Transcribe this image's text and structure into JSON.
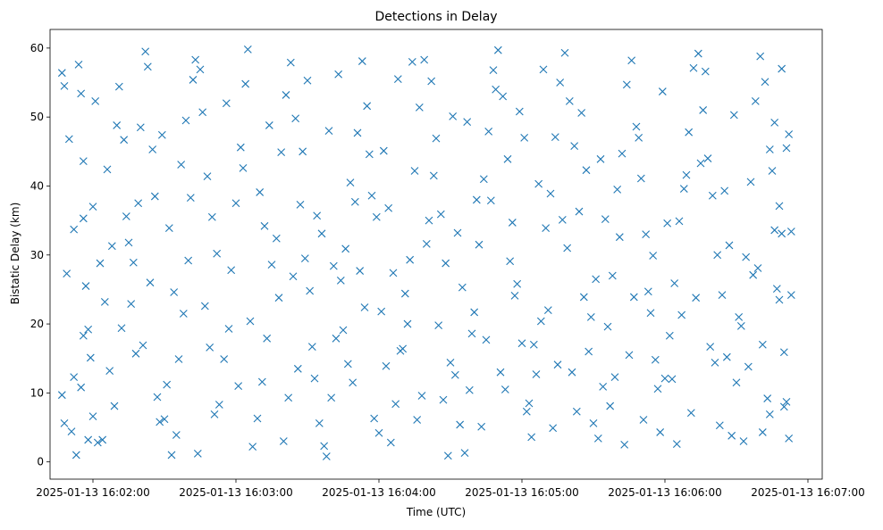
{
  "chart_data": {
    "type": "scatter",
    "title": "Detections in Delay",
    "xlabel": "Time (UTC)",
    "ylabel": "Bistatic Delay (km)",
    "x_type": "time",
    "x_ticks": [
      "2025-01-13 16:02:00",
      "2025-01-13 16:03:00",
      "2025-01-13 16:04:00",
      "2025-01-13 16:05:00",
      "2025-01-13 16:06:00",
      "2025-01-13 16:07:00"
    ],
    "y_ticks": [
      0,
      10,
      20,
      30,
      40,
      50,
      60
    ],
    "xlim": [
      "2025-01-13 16:01:42",
      "2025-01-13 16:07:06"
    ],
    "ylim": [
      -2.5,
      62.7
    ],
    "grid": false,
    "legend": "none",
    "marker": "x",
    "color": "#1f77b4",
    "points": [
      [
        "16:01:47",
        56.4
      ],
      [
        "16:01:48",
        54.5
      ],
      [
        "16:01:50",
        46.8
      ],
      [
        "16:01:49",
        27.3
      ],
      [
        "16:01:47",
        9.7
      ],
      [
        "16:01:48",
        5.6
      ],
      [
        "16:01:52",
        12.3
      ],
      [
        "16:01:53",
        1.0
      ],
      [
        "16:01:55",
        10.8
      ],
      [
        "16:01:52",
        33.7
      ],
      [
        "16:01:54",
        57.6
      ],
      [
        "16:01:55",
        53.4
      ],
      [
        "16:01:56",
        43.6
      ],
      [
        "16:01:56",
        35.3
      ],
      [
        "16:01:57",
        25.5
      ],
      [
        "16:01:58",
        19.2
      ],
      [
        "16:01:56",
        18.3
      ],
      [
        "16:01:58",
        3.2
      ],
      [
        "16:02:00",
        6.6
      ],
      [
        "16:02:02",
        2.8
      ],
      [
        "16:02:00",
        37.0
      ],
      [
        "16:02:01",
        52.3
      ],
      [
        "16:02:03",
        28.8
      ],
      [
        "16:02:05",
        23.2
      ],
      [
        "16:02:07",
        13.2
      ],
      [
        "16:02:08",
        31.3
      ],
      [
        "16:02:10",
        48.8
      ],
      [
        "16:02:11",
        54.4
      ],
      [
        "16:02:13",
        46.7
      ],
      [
        "16:02:15",
        31.8
      ],
      [
        "16:02:18",
        15.7
      ],
      [
        "16:02:16",
        22.9
      ],
      [
        "16:02:20",
        48.5
      ],
      [
        "16:02:22",
        59.5
      ],
      [
        "16:02:23",
        57.3
      ],
      [
        "16:02:25",
        45.3
      ],
      [
        "16:02:26",
        38.5
      ],
      [
        "16:02:24",
        26.0
      ],
      [
        "16:02:21",
        16.9
      ],
      [
        "16:02:27",
        9.4
      ],
      [
        "16:02:28",
        5.8
      ],
      [
        "16:02:30",
        6.2
      ],
      [
        "16:02:33",
        1.0
      ],
      [
        "16:02:35",
        3.9
      ],
      [
        "16:02:36",
        14.9
      ],
      [
        "16:02:38",
        21.5
      ],
      [
        "16:02:40",
        29.2
      ],
      [
        "16:02:41",
        38.3
      ],
      [
        "16:02:39",
        49.5
      ],
      [
        "16:02:43",
        58.3
      ],
      [
        "16:02:45",
        56.9
      ],
      [
        "16:02:46",
        50.7
      ],
      [
        "16:02:48",
        41.4
      ],
      [
        "16:02:50",
        35.5
      ],
      [
        "16:02:47",
        22.6
      ],
      [
        "16:02:49",
        16.6
      ],
      [
        "16:02:53",
        8.3
      ],
      [
        "16:02:55",
        14.9
      ],
      [
        "16:02:58",
        27.8
      ],
      [
        "16:03:00",
        37.5
      ],
      [
        "16:03:02",
        45.6
      ],
      [
        "16:03:04",
        54.8
      ],
      [
        "16:03:05",
        59.8
      ],
      [
        "16:03:07",
        2.2
      ],
      [
        "16:03:09",
        6.3
      ],
      [
        "16:03:11",
        11.6
      ],
      [
        "16:03:13",
        17.9
      ],
      [
        "16:03:15",
        28.6
      ],
      [
        "16:03:17",
        32.4
      ],
      [
        "16:03:19",
        44.9
      ],
      [
        "16:03:21",
        53.2
      ],
      [
        "16:03:23",
        57.9
      ],
      [
        "16:03:25",
        49.8
      ],
      [
        "16:03:27",
        37.3
      ],
      [
        "16:03:29",
        29.5
      ],
      [
        "16:03:31",
        24.8
      ],
      [
        "16:03:33",
        12.1
      ],
      [
        "16:03:35",
        5.6
      ],
      [
        "16:03:38",
        0.8
      ],
      [
        "16:03:40",
        9.3
      ],
      [
        "16:03:42",
        17.9
      ],
      [
        "16:03:44",
        26.3
      ],
      [
        "16:03:46",
        30.9
      ],
      [
        "16:03:48",
        40.5
      ],
      [
        "16:03:51",
        47.7
      ],
      [
        "16:03:53",
        58.1
      ],
      [
        "16:03:55",
        51.6
      ],
      [
        "16:03:57",
        38.6
      ],
      [
        "16:03:59",
        35.5
      ],
      [
        "16:04:01",
        21.8
      ],
      [
        "16:04:03",
        13.9
      ],
      [
        "16:04:05",
        2.8
      ],
      [
        "16:04:07",
        8.4
      ],
      [
        "16:04:09",
        16.1
      ],
      [
        "16:04:11",
        24.4
      ],
      [
        "16:04:13",
        29.3
      ],
      [
        "16:04:15",
        42.2
      ],
      [
        "16:04:17",
        51.4
      ],
      [
        "16:04:19",
        58.3
      ],
      [
        "16:04:22",
        55.2
      ],
      [
        "16:04:24",
        46.9
      ],
      [
        "16:04:26",
        35.9
      ],
      [
        "16:04:28",
        28.8
      ],
      [
        "16:04:30",
        14.4
      ],
      [
        "16:04:32",
        12.6
      ],
      [
        "16:04:34",
        5.4
      ],
      [
        "16:04:36",
        1.3
      ],
      [
        "16:04:38",
        10.4
      ],
      [
        "16:04:40",
        21.7
      ],
      [
        "16:04:42",
        31.5
      ],
      [
        "16:04:44",
        41.0
      ],
      [
        "16:04:46",
        47.9
      ],
      [
        "16:04:48",
        56.8
      ],
      [
        "16:04:50",
        59.7
      ],
      [
        "16:04:52",
        53.0
      ],
      [
        "16:04:54",
        43.9
      ],
      [
        "16:04:56",
        34.7
      ],
      [
        "16:04:58",
        25.8
      ],
      [
        "16:05:00",
        17.2
      ],
      [
        "16:05:02",
        7.3
      ],
      [
        "16:05:04",
        3.6
      ],
      [
        "16:05:06",
        12.7
      ],
      [
        "16:05:08",
        20.4
      ],
      [
        "16:05:10",
        33.9
      ],
      [
        "16:05:12",
        38.9
      ],
      [
        "16:05:14",
        47.1
      ],
      [
        "16:05:16",
        55.0
      ],
      [
        "16:05:18",
        59.3
      ],
      [
        "16:05:20",
        52.3
      ],
      [
        "16:05:22",
        45.8
      ],
      [
        "16:05:24",
        36.3
      ],
      [
        "16:05:26",
        23.9
      ],
      [
        "16:05:28",
        16.0
      ],
      [
        "16:05:30",
        5.6
      ],
      [
        "16:05:32",
        3.4
      ],
      [
        "16:05:34",
        10.9
      ],
      [
        "16:05:36",
        19.6
      ],
      [
        "16:05:38",
        27.0
      ],
      [
        "16:05:40",
        39.5
      ],
      [
        "16:05:42",
        44.7
      ],
      [
        "16:05:44",
        54.7
      ],
      [
        "16:05:46",
        58.2
      ],
      [
        "16:05:48",
        48.6
      ],
      [
        "16:05:50",
        41.1
      ],
      [
        "16:05:52",
        33.0
      ],
      [
        "16:05:54",
        21.6
      ],
      [
        "16:05:56",
        14.8
      ],
      [
        "16:05:58",
        4.3
      ],
      [
        "16:06:00",
        12.1
      ],
      [
        "16:06:02",
        18.3
      ],
      [
        "16:06:04",
        25.9
      ],
      [
        "16:06:06",
        34.9
      ],
      [
        "16:06:08",
        39.6
      ],
      [
        "16:06:10",
        47.8
      ],
      [
        "16:06:12",
        57.1
      ],
      [
        "16:06:14",
        59.2
      ],
      [
        "16:06:16",
        51.0
      ],
      [
        "16:06:18",
        44.0
      ],
      [
        "16:06:20",
        38.6
      ],
      [
        "16:06:22",
        30.0
      ],
      [
        "16:06:24",
        24.2
      ],
      [
        "16:06:26",
        15.2
      ],
      [
        "16:06:28",
        3.8
      ],
      [
        "16:06:30",
        11.5
      ],
      [
        "16:06:32",
        19.7
      ],
      [
        "16:06:34",
        29.7
      ],
      [
        "16:06:36",
        40.6
      ],
      [
        "16:06:38",
        52.3
      ],
      [
        "16:06:40",
        58.8
      ],
      [
        "16:06:42",
        55.1
      ],
      [
        "16:06:44",
        45.3
      ],
      [
        "16:06:46",
        33.6
      ],
      [
        "16:06:48",
        23.5
      ],
      [
        "16:06:50",
        8.0
      ],
      [
        "16:06:52",
        3.4
      ],
      [
        "16:06:50",
        15.9
      ],
      [
        "16:06:48",
        37.1
      ],
      [
        "16:06:46",
        49.2
      ],
      [
        "16:06:44",
        6.9
      ],
      [
        "16:06:41",
        4.3
      ],
      [
        "16:02:04",
        3.2
      ],
      [
        "16:02:09",
        8.1
      ],
      [
        "16:02:12",
        19.4
      ],
      [
        "16:02:17",
        28.9
      ],
      [
        "16:02:19",
        37.5
      ],
      [
        "16:02:29",
        47.4
      ],
      [
        "16:02:31",
        11.2
      ],
      [
        "16:02:34",
        24.6
      ],
      [
        "16:02:37",
        43.1
      ],
      [
        "16:02:44",
        1.2
      ],
      [
        "16:02:52",
        30.2
      ],
      [
        "16:02:56",
        52.0
      ],
      [
        "16:03:01",
        11.0
      ],
      [
        "16:03:06",
        20.4
      ],
      [
        "16:03:10",
        39.1
      ],
      [
        "16:03:14",
        48.8
      ],
      [
        "16:03:18",
        23.8
      ],
      [
        "16:03:22",
        9.3
      ],
      [
        "16:03:26",
        13.5
      ],
      [
        "16:03:30",
        55.3
      ],
      [
        "16:03:34",
        35.7
      ],
      [
        "16:03:37",
        2.3
      ],
      [
        "16:03:41",
        28.4
      ],
      [
        "16:03:45",
        19.1
      ],
      [
        "16:03:49",
        11.5
      ],
      [
        "16:03:52",
        27.7
      ],
      [
        "16:03:56",
        44.6
      ],
      [
        "16:04:00",
        4.2
      ],
      [
        "16:04:04",
        36.8
      ],
      [
        "16:04:08",
        55.5
      ],
      [
        "16:04:12",
        20.0
      ],
      [
        "16:04:16",
        6.1
      ],
      [
        "16:04:20",
        31.6
      ],
      [
        "16:04:23",
        41.5
      ],
      [
        "16:04:27",
        9.0
      ],
      [
        "16:04:31",
        50.1
      ],
      [
        "16:04:35",
        25.3
      ],
      [
        "16:04:39",
        18.6
      ],
      [
        "16:04:43",
        5.1
      ],
      [
        "16:04:47",
        37.9
      ],
      [
        "16:04:51",
        13.0
      ],
      [
        "16:04:55",
        29.1
      ],
      [
        "16:04:59",
        50.8
      ],
      [
        "16:05:03",
        8.5
      ],
      [
        "16:05:07",
        40.3
      ],
      [
        "16:05:11",
        22.0
      ],
      [
        "16:05:15",
        14.1
      ],
      [
        "16:05:19",
        31.0
      ],
      [
        "16:05:23",
        7.3
      ],
      [
        "16:05:27",
        42.3
      ],
      [
        "16:05:31",
        26.5
      ],
      [
        "16:05:35",
        35.2
      ],
      [
        "16:05:39",
        12.3
      ],
      [
        "16:05:43",
        2.5
      ],
      [
        "16:05:47",
        23.9
      ],
      [
        "16:05:51",
        6.1
      ],
      [
        "16:05:55",
        29.9
      ],
      [
        "16:05:59",
        53.7
      ],
      [
        "16:06:03",
        12.0
      ],
      [
        "16:06:07",
        21.3
      ],
      [
        "16:06:11",
        7.1
      ],
      [
        "16:06:15",
        43.3
      ],
      [
        "16:06:19",
        16.7
      ],
      [
        "16:06:23",
        5.3
      ],
      [
        "16:06:27",
        31.4
      ],
      [
        "16:06:31",
        21.0
      ],
      [
        "16:06:35",
        13.8
      ],
      [
        "16:06:39",
        28.1
      ],
      [
        "16:06:43",
        9.2
      ],
      [
        "16:06:47",
        25.1
      ],
      [
        "16:01:51",
        4.4
      ],
      [
        "16:01:59",
        15.1
      ],
      [
        "16:02:06",
        42.4
      ],
      [
        "16:02:14",
        35.6
      ],
      [
        "16:02:32",
        33.9
      ],
      [
        "16:02:42",
        55.4
      ],
      [
        "16:02:51",
        6.9
      ],
      [
        "16:02:57",
        19.3
      ],
      [
        "16:03:03",
        42.6
      ],
      [
        "16:03:12",
        34.2
      ],
      [
        "16:03:20",
        3.0
      ],
      [
        "16:03:24",
        26.9
      ],
      [
        "16:03:28",
        45.0
      ],
      [
        "16:03:32",
        16.7
      ],
      [
        "16:03:36",
        33.1
      ],
      [
        "16:03:39",
        48.0
      ],
      [
        "16:03:43",
        56.2
      ],
      [
        "16:03:47",
        14.2
      ],
      [
        "16:03:50",
        37.7
      ],
      [
        "16:03:54",
        22.4
      ],
      [
        "16:03:58",
        6.3
      ],
      [
        "16:04:02",
        45.1
      ],
      [
        "16:04:06",
        27.4
      ],
      [
        "16:04:10",
        16.4
      ],
      [
        "16:04:14",
        58.0
      ],
      [
        "16:04:18",
        9.6
      ],
      [
        "16:04:21",
        35.0
      ],
      [
        "16:04:25",
        19.8
      ],
      [
        "16:04:29",
        0.9
      ],
      [
        "16:04:33",
        33.2
      ],
      [
        "16:04:37",
        49.3
      ],
      [
        "16:04:41",
        38.0
      ],
      [
        "16:04:45",
        17.7
      ],
      [
        "16:04:49",
        54.0
      ],
      [
        "16:04:53",
        10.5
      ],
      [
        "16:04:57",
        24.1
      ],
      [
        "16:05:01",
        47.0
      ],
      [
        "16:05:05",
        17.0
      ],
      [
        "16:05:09",
        56.9
      ],
      [
        "16:05:13",
        4.9
      ],
      [
        "16:05:17",
        35.1
      ],
      [
        "16:05:21",
        13.0
      ],
      [
        "16:05:25",
        50.6
      ],
      [
        "16:05:29",
        21.0
      ],
      [
        "16:05:33",
        43.9
      ],
      [
        "16:05:37",
        8.1
      ],
      [
        "16:05:41",
        32.6
      ],
      [
        "16:05:45",
        15.5
      ],
      [
        "16:05:49",
        47.0
      ],
      [
        "16:05:53",
        24.7
      ],
      [
        "16:05:57",
        10.6
      ],
      [
        "16:06:01",
        34.6
      ],
      [
        "16:06:05",
        2.6
      ],
      [
        "16:06:09",
        41.6
      ],
      [
        "16:06:13",
        23.8
      ],
      [
        "16:06:17",
        56.6
      ],
      [
        "16:06:21",
        14.4
      ],
      [
        "16:06:25",
        39.3
      ],
      [
        "16:06:29",
        50.3
      ],
      [
        "16:06:33",
        3.0
      ],
      [
        "16:06:37",
        27.1
      ],
      [
        "16:06:41",
        17.0
      ],
      [
        "16:06:45",
        42.2
      ],
      [
        "16:06:49",
        33.1
      ],
      [
        "16:06:51",
        45.5
      ],
      [
        "16:06:49",
        57.0
      ],
      [
        "16:06:53",
        24.2
      ],
      [
        "16:06:52",
        47.5
      ],
      [
        "16:06:51",
        8.7
      ],
      [
        "16:06:53",
        33.4
      ]
    ]
  }
}
